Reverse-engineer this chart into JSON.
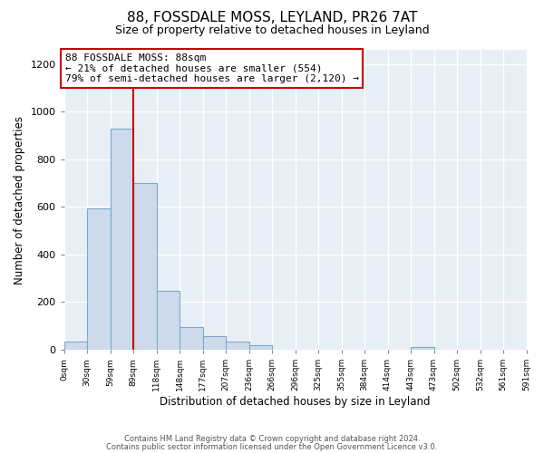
{
  "title": "88, FOSSDALE MOSS, LEYLAND, PR26 7AT",
  "subtitle": "Size of property relative to detached houses in Leyland",
  "xlabel": "Distribution of detached houses by size in Leyland",
  "ylabel": "Number of detached properties",
  "bar_color": "#cddaeb",
  "bar_edge_color": "#7aaac8",
  "axes_bg_color": "#e8eef5",
  "figure_bg_color": "#ffffff",
  "grid_color": "#ffffff",
  "bin_width": 29.5,
  "bin_starts": [
    0,
    29.5,
    59,
    88.5,
    118,
    147.5,
    177,
    206.5,
    236,
    265.5,
    295,
    324.5,
    354,
    383.5,
    413,
    442.5,
    472,
    501.5,
    531,
    560.5
  ],
  "bin_labels": [
    "0sqm",
    "30sqm",
    "59sqm",
    "89sqm",
    "118sqm",
    "148sqm",
    "177sqm",
    "207sqm",
    "236sqm",
    "266sqm",
    "296sqm",
    "325sqm",
    "355sqm",
    "384sqm",
    "414sqm",
    "443sqm",
    "473sqm",
    "502sqm",
    "532sqm",
    "561sqm",
    "591sqm"
  ],
  "bar_heights": [
    35,
    595,
    930,
    700,
    248,
    97,
    57,
    33,
    18,
    0,
    0,
    0,
    0,
    0,
    0,
    10,
    0,
    0,
    0,
    0
  ],
  "ylim": [
    0,
    1260
  ],
  "yticks": [
    0,
    200,
    400,
    600,
    800,
    1000,
    1200
  ],
  "xlim_max": 590,
  "vline_x": 88,
  "vline_color": "#cc0000",
  "annotation_title": "88 FOSSDALE MOSS: 88sqm",
  "annotation_line1": "← 21% of detached houses are smaller (554)",
  "annotation_line2": "79% of semi-detached houses are larger (2,120) →",
  "annotation_box_color": "#ffffff",
  "annotation_box_edge": "#cc0000",
  "footer1": "Contains HM Land Registry data © Crown copyright and database right 2024.",
  "footer2": "Contains public sector information licensed under the Open Government Licence v3.0."
}
